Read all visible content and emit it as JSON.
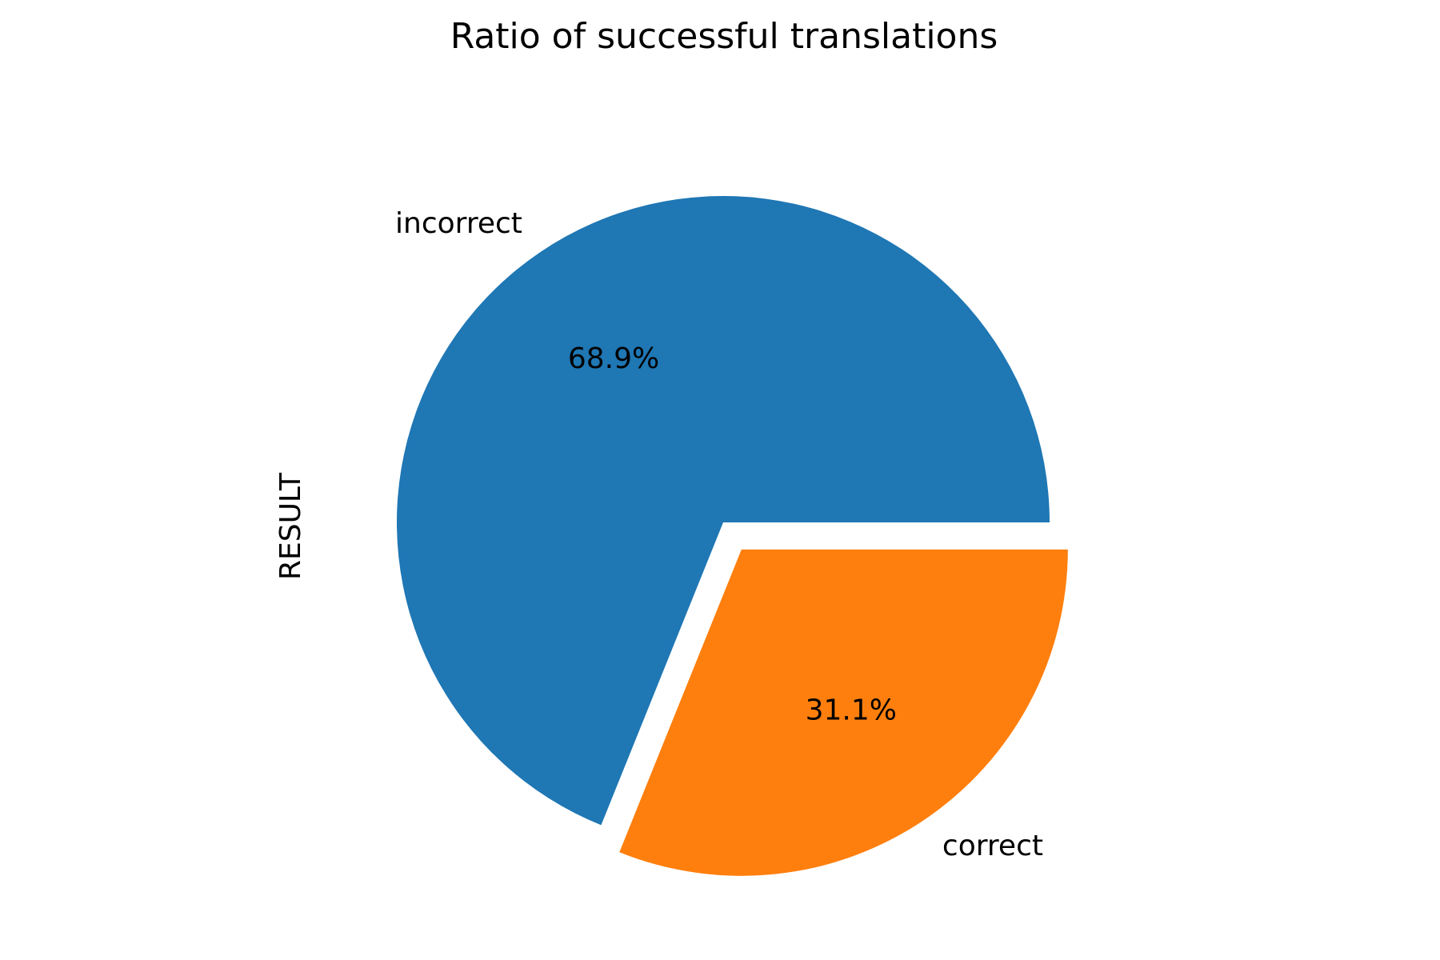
{
  "chart_data": {
    "type": "pie",
    "title": "Ratio of successful translations",
    "ylabel": "RESULT",
    "categories": [
      "incorrect",
      "correct"
    ],
    "values": [
      68.9,
      31.1
    ],
    "percent_labels": [
      "68.9%",
      "31.1%"
    ],
    "colors": [
      "#1f77b4",
      "#ff7f0e"
    ],
    "exploded": [
      false,
      true
    ],
    "start_angle_deg": 0,
    "direction": "counterclockwise",
    "legend": "none"
  }
}
